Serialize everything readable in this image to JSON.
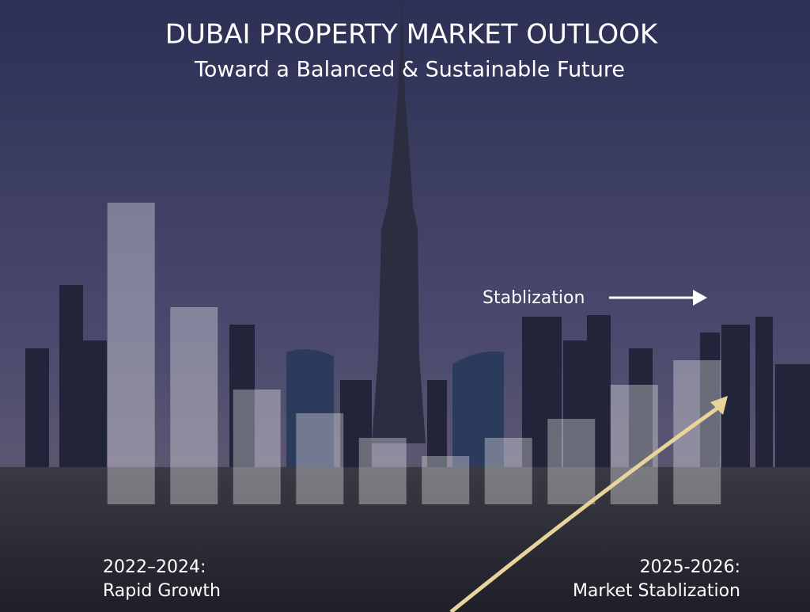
{
  "chart_data": {
    "type": "bar",
    "title": "DUBAI PROPERTY MARKET OUTLOOK",
    "subtitle": "Toward a Balanced & Sustainable Future",
    "values": [
      381,
      249,
      145,
      115,
      84,
      61,
      84,
      108,
      151,
      182
    ],
    "color": "#ffffff",
    "ylim": [
      0,
      400
    ],
    "annotations": [
      "Stablization",
      "2022–2024:",
      "Rapid Growth",
      "2025-2026:",
      "Market Stablization"
    ],
    "trend_color": "#e8d49a"
  }
}
